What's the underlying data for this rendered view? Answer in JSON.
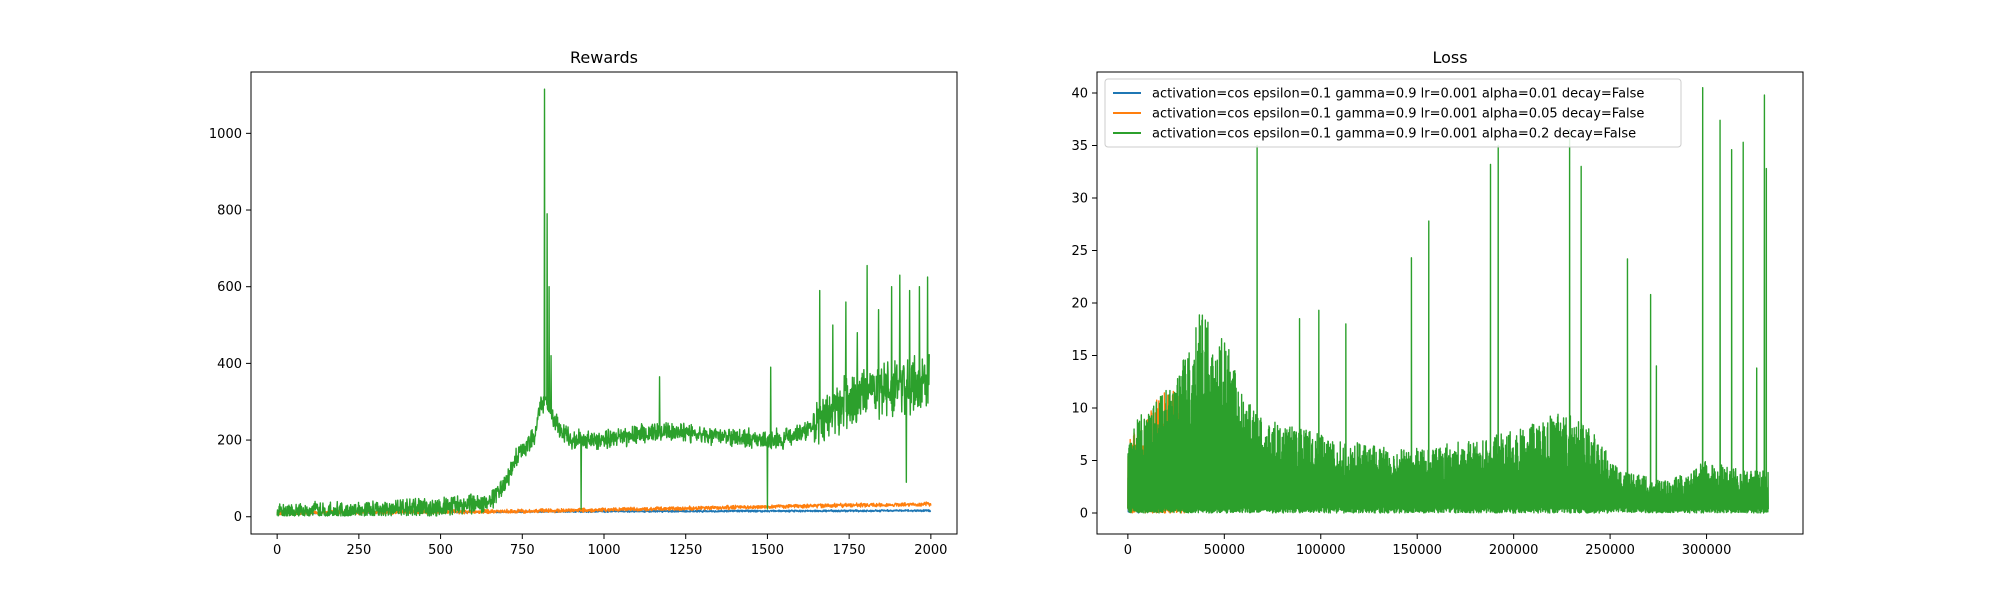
{
  "colors": {
    "blue": "#1f77b4",
    "orange": "#ff7f0e",
    "green": "#2ca02c"
  },
  "chart_data": [
    {
      "type": "line",
      "title": "Rewards",
      "xlabel": "",
      "ylabel": "",
      "xlim": [
        -80,
        2080
      ],
      "ylim": [
        -45,
        1160
      ],
      "xticks": [
        0,
        250,
        500,
        750,
        1000,
        1250,
        1500,
        1750,
        2000
      ],
      "yticks": [
        0,
        200,
        400,
        600,
        800,
        1000
      ],
      "legend": false,
      "series": [
        {
          "color": "#1f77b4",
          "keypoints": [
            [
              0,
              10
            ],
            [
              500,
              12
            ],
            [
              1000,
              14
            ],
            [
              1500,
              15
            ],
            [
              2000,
              16
            ]
          ],
          "noise": 3
        },
        {
          "color": "#ff7f0e",
          "keypoints": [
            [
              0,
              10
            ],
            [
              700,
              14
            ],
            [
              1000,
              18
            ],
            [
              1250,
              22
            ],
            [
              1500,
              26
            ],
            [
              1750,
              30
            ],
            [
              2000,
              33
            ]
          ],
          "noise": 6
        },
        {
          "color": "#2ca02c",
          "keypoints": [
            [
              0,
              10
            ],
            [
              250,
              14
            ],
            [
              400,
              20
            ],
            [
              550,
              30
            ],
            [
              650,
              40
            ],
            [
              700,
              90
            ],
            [
              740,
              170
            ],
            [
              790,
              210
            ],
            [
              805,
              300
            ],
            [
              830,
              290
            ],
            [
              860,
              230
            ],
            [
              900,
              200
            ],
            [
              1000,
              200
            ],
            [
              1100,
              215
            ],
            [
              1200,
              225
            ],
            [
              1300,
              215
            ],
            [
              1400,
              205
            ],
            [
              1500,
              200
            ],
            [
              1550,
              205
            ],
            [
              1600,
              215
            ],
            [
              1650,
              250
            ],
            [
              1700,
              275
            ],
            [
              1750,
              300
            ],
            [
              1800,
              320
            ],
            [
              1850,
              340
            ],
            [
              1900,
              335
            ],
            [
              1950,
              350
            ],
            [
              1995,
              360
            ]
          ],
          "noise": 30,
          "noise_late": 85,
          "spikes": [
            [
              818,
              1115
            ],
            [
              826,
              790
            ],
            [
              832,
              600
            ],
            [
              838,
              420
            ],
            [
              1170,
              365
            ],
            [
              1510,
              390
            ],
            [
              1660,
              590
            ],
            [
              1700,
              500
            ],
            [
              1740,
              560
            ],
            [
              1775,
              480
            ],
            [
              1805,
              655
            ],
            [
              1840,
              540
            ],
            [
              1880,
              600
            ],
            [
              1905,
              630
            ],
            [
              1935,
              590
            ],
            [
              1965,
              600
            ],
            [
              1990,
              625
            ]
          ],
          "dips": [
            [
              930,
              20
            ],
            [
              1500,
              20
            ],
            [
              1925,
              90
            ],
            [
              2000,
              20
            ]
          ]
        }
      ]
    },
    {
      "type": "line",
      "title": "Loss",
      "xlabel": "",
      "ylabel": "",
      "xlim": [
        -16000,
        350000
      ],
      "ylim": [
        -2,
        42
      ],
      "xticks": [
        0,
        50000,
        100000,
        150000,
        200000,
        250000,
        300000
      ],
      "yticks": [
        0,
        5,
        10,
        15,
        20,
        25,
        30,
        35,
        40
      ],
      "legend": true,
      "legend_position": "upper left",
      "series": [
        {
          "name": "activation=cos epsilon=0.1 gamma=0.9 lr=0.001 alpha=0.01 decay=False",
          "color": "#1f77b4",
          "x_end": 6000,
          "envelope": [
            [
              0,
              4
            ],
            [
              6000,
              5
            ]
          ]
        },
        {
          "name": "activation=cos epsilon=0.1 gamma=0.9 lr=0.001 alpha=0.05 decay=False",
          "color": "#ff7f0e",
          "x_end": 30000,
          "envelope": [
            [
              0,
              7
            ],
            [
              10000,
              9
            ],
            [
              15000,
              11
            ],
            [
              22000,
              12
            ],
            [
              30000,
              11
            ]
          ]
        },
        {
          "name": "activation=cos epsilon=0.1 gamma=0.9 lr=0.001 alpha=0.2 decay=False",
          "color": "#2ca02c",
          "x_end": 332000,
          "envelope": [
            [
              0,
              8
            ],
            [
              10000,
              10
            ],
            [
              25000,
              13
            ],
            [
              35000,
              18
            ],
            [
              40000,
              21
            ],
            [
              45000,
              16
            ],
            [
              50000,
              17
            ],
            [
              60000,
              11
            ],
            [
              70000,
              9
            ],
            [
              90000,
              8
            ],
            [
              110000,
              7
            ],
            [
              140000,
              6
            ],
            [
              180000,
              7
            ],
            [
              200000,
              8
            ],
            [
              215000,
              9
            ],
            [
              225000,
              10
            ],
            [
              240000,
              8
            ],
            [
              255000,
              4
            ],
            [
              280000,
              3
            ],
            [
              300000,
              5
            ],
            [
              320000,
              4
            ],
            [
              332000,
              4
            ]
          ],
          "spikes": [
            [
              67000,
              35
            ],
            [
              89000,
              18.5
            ],
            [
              99000,
              19.3
            ],
            [
              113000,
              18
            ],
            [
              147000,
              24.3
            ],
            [
              156000,
              27.8
            ],
            [
              188000,
              33.2
            ],
            [
              192000,
              35
            ],
            [
              229000,
              36.5
            ],
            [
              235000,
              33
            ],
            [
              259000,
              24.2
            ],
            [
              271000,
              20.8
            ],
            [
              274000,
              14
            ],
            [
              298000,
              40.5
            ],
            [
              307000,
              37.4
            ],
            [
              313000,
              34.6
            ],
            [
              319000,
              35.3
            ],
            [
              326000,
              13.8
            ],
            [
              330000,
              39.8
            ],
            [
              331000,
              32.8
            ]
          ]
        }
      ]
    }
  ]
}
